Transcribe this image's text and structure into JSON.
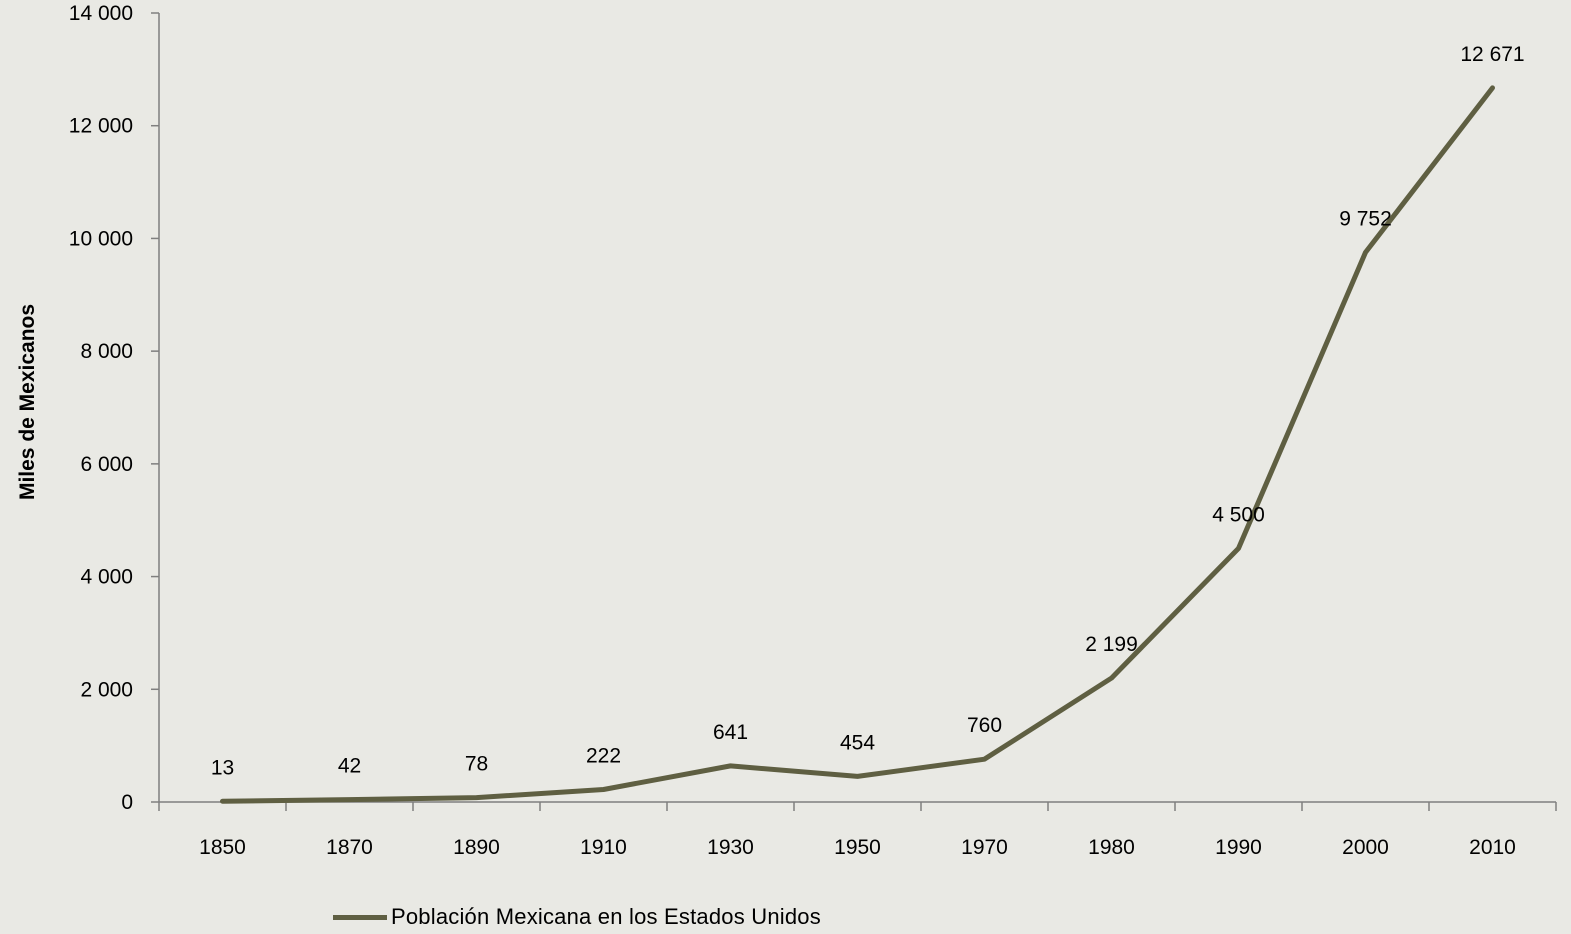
{
  "chart_data": {
    "type": "line",
    "categories": [
      "1850",
      "1870",
      "1890",
      "1910",
      "1930",
      "1950",
      "1970",
      "1980",
      "1990",
      "2000",
      "2010"
    ],
    "series": [
      {
        "name": "Población Mexicana en los Estados  Unidos",
        "values": [
          13,
          42,
          78,
          222,
          641,
          454,
          760,
          2199,
          4500,
          9752,
          12671
        ],
        "labels": [
          "13",
          "42",
          "78",
          "222",
          "641",
          "454",
          "760",
          "2 199",
          "4 500",
          "9 752",
          "12 671"
        ],
        "color": "#5f5f42"
      }
    ],
    "ylabel": "Miles de Mexicanos",
    "xlabel": "",
    "ylim": [
      0,
      14000
    ],
    "yticks": [
      0,
      2000,
      4000,
      6000,
      8000,
      10000,
      12000,
      14000
    ],
    "ytick_labels": [
      "0",
      "2 000",
      "4 000",
      "6 000",
      "8 000",
      "10 000",
      "12 000",
      "14 000"
    ],
    "grid": false,
    "legend_position": "bottom-left",
    "axis_color": "#7f7f7f",
    "background": "#e9e9e4"
  }
}
